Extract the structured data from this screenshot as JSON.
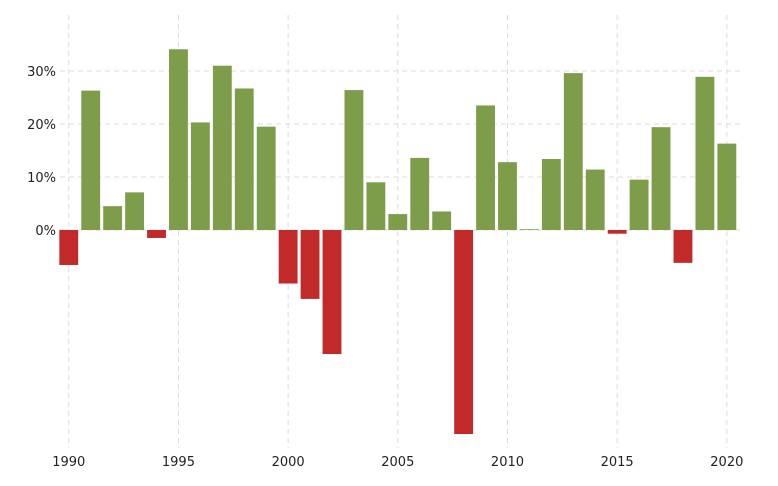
{
  "chart_data": {
    "type": "bar",
    "title": "",
    "xlabel": "",
    "ylabel": "",
    "x": [
      1990,
      1991,
      1992,
      1993,
      1994,
      1995,
      1996,
      1997,
      1998,
      1999,
      2000,
      2001,
      2002,
      2003,
      2004,
      2005,
      2006,
      2007,
      2008,
      2009,
      2010,
      2011,
      2012,
      2013,
      2014,
      2015,
      2016,
      2017,
      2018,
      2019,
      2020
    ],
    "values": [
      -6.6,
      26.3,
      4.5,
      7.1,
      -1.5,
      34.1,
      20.3,
      31.0,
      26.7,
      19.5,
      -10.1,
      -13.0,
      -23.4,
      26.4,
      9.0,
      3.0,
      13.6,
      3.5,
      -38.5,
      23.5,
      12.8,
      0.0,
      13.4,
      29.6,
      11.4,
      -0.7,
      9.5,
      19.4,
      -6.2,
      28.9,
      16.3
    ],
    "xticks": [
      "1990",
      "1995",
      "2000",
      "2005",
      "2010",
      "2015",
      "2020"
    ],
    "xtick_values": [
      1990,
      1995,
      2000,
      2005,
      2010,
      2015,
      2020
    ],
    "yticks": [
      "0%",
      "10%",
      "20%",
      "30%"
    ],
    "ytick_values": [
      0,
      10,
      20,
      30
    ],
    "xlim": [
      1989.6,
      2020.6
    ],
    "ylim": [
      -38.5,
      40
    ],
    "grid": true,
    "colors": {
      "positive": "#7d9d4a",
      "negative": "#c22a2a"
    }
  }
}
